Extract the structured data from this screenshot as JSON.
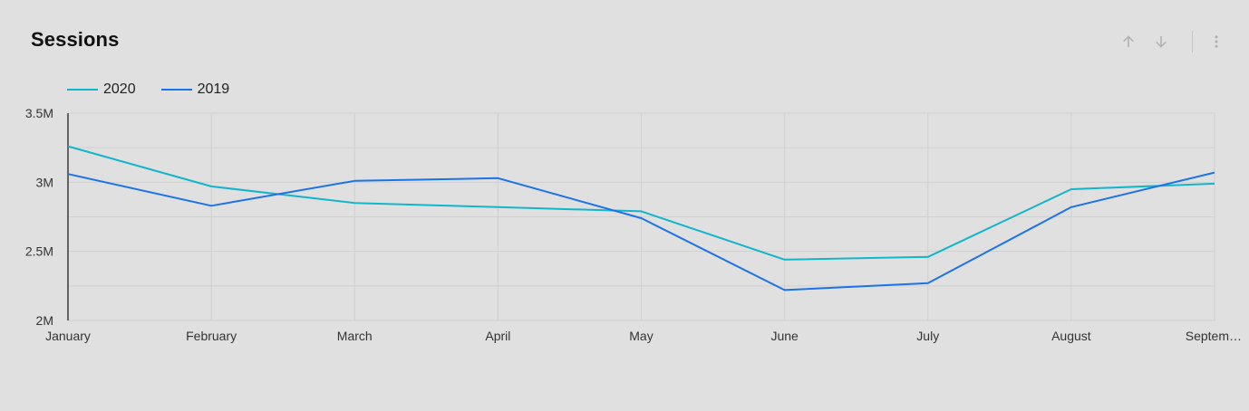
{
  "header": {
    "title": "Sessions"
  },
  "toolbar": {
    "sort_up_icon": "arrow-up-icon",
    "sort_down_icon": "arrow-down-icon",
    "more_icon": "more-vert-icon"
  },
  "colors": {
    "series_2020": "#12b5cb",
    "series_2019": "#1a73e8",
    "grid": "#d0d0d0",
    "axis": "#111111",
    "icon": "#b0b0b0"
  },
  "chart_data": {
    "type": "line",
    "title": "Sessions",
    "xlabel": "",
    "ylabel": "",
    "categories": [
      "January",
      "February",
      "March",
      "April",
      "May",
      "June",
      "July",
      "August",
      "Septem…"
    ],
    "yticks": [
      "2M",
      "2.5M",
      "3M",
      "3.5M"
    ],
    "ylim": [
      2000000,
      3500000
    ],
    "grid": true,
    "legend_position": "top-left",
    "series": [
      {
        "name": "2020",
        "color": "#12b5cb",
        "values": [
          3260000,
          2970000,
          2850000,
          2820000,
          2790000,
          2440000,
          2460000,
          2950000,
          2990000
        ]
      },
      {
        "name": "2019",
        "color": "#1a73e8",
        "values": [
          3060000,
          2830000,
          3010000,
          3030000,
          2740000,
          2220000,
          2270000,
          2820000,
          3070000
        ]
      }
    ]
  }
}
